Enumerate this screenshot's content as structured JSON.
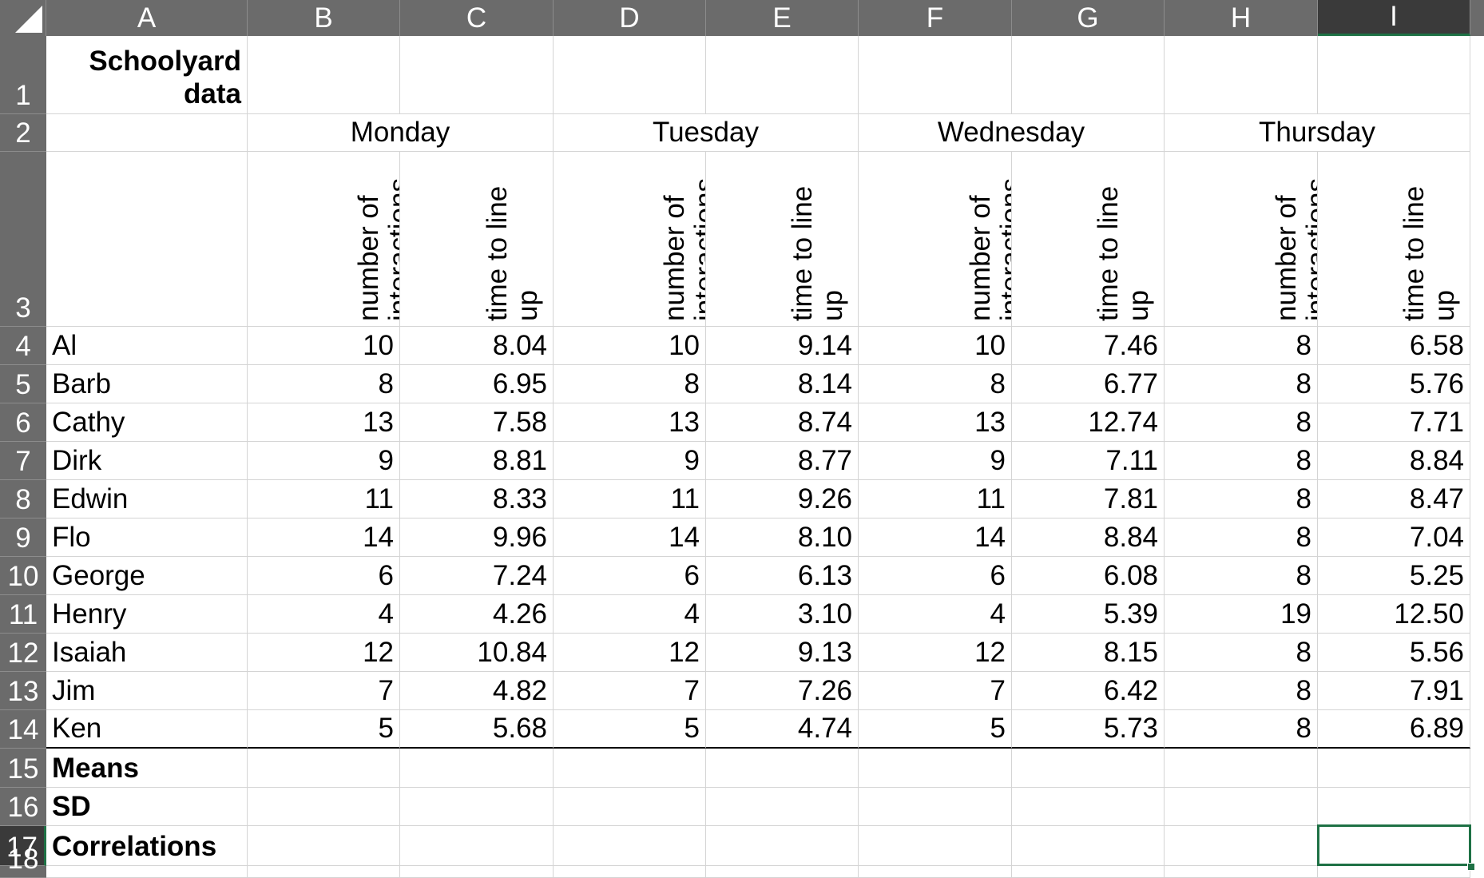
{
  "columns": [
    "A",
    "B",
    "C",
    "D",
    "E",
    "F",
    "G",
    "H",
    "I"
  ],
  "selected_column": "I",
  "selected_row": "17",
  "row_numbers": [
    "1",
    "2",
    "3",
    "4",
    "5",
    "6",
    "7",
    "8",
    "9",
    "10",
    "11",
    "12",
    "13",
    "14",
    "15",
    "16",
    "17",
    "18"
  ],
  "title": {
    "line1": "Schoolyard",
    "line2": "data"
  },
  "days": [
    "Monday",
    "Tuesday",
    "Wednesday",
    "Thursday"
  ],
  "subheaders": {
    "interactions": "number of interactions",
    "lineup": "time to line up"
  },
  "rows": [
    {
      "name": "Al",
      "values": [
        "10",
        "8.04",
        "10",
        "9.14",
        "10",
        "7.46",
        "8",
        "6.58"
      ]
    },
    {
      "name": "Barb",
      "values": [
        "8",
        "6.95",
        "8",
        "8.14",
        "8",
        "6.77",
        "8",
        "5.76"
      ]
    },
    {
      "name": "Cathy",
      "values": [
        "13",
        "7.58",
        "13",
        "8.74",
        "13",
        "12.74",
        "8",
        "7.71"
      ]
    },
    {
      "name": "Dirk",
      "values": [
        "9",
        "8.81",
        "9",
        "8.77",
        "9",
        "7.11",
        "8",
        "8.84"
      ]
    },
    {
      "name": "Edwin",
      "values": [
        "11",
        "8.33",
        "11",
        "9.26",
        "11",
        "7.81",
        "8",
        "8.47"
      ]
    },
    {
      "name": "Flo",
      "values": [
        "14",
        "9.96",
        "14",
        "8.10",
        "14",
        "8.84",
        "8",
        "7.04"
      ]
    },
    {
      "name": "George",
      "values": [
        "6",
        "7.24",
        "6",
        "6.13",
        "6",
        "6.08",
        "8",
        "5.25"
      ]
    },
    {
      "name": "Henry",
      "values": [
        "4",
        "4.26",
        "4",
        "3.10",
        "4",
        "5.39",
        "19",
        "12.50"
      ]
    },
    {
      "name": "Isaiah",
      "values": [
        "12",
        "10.84",
        "12",
        "9.13",
        "12",
        "8.15",
        "8",
        "5.56"
      ]
    },
    {
      "name": "Jim",
      "values": [
        "7",
        "4.82",
        "7",
        "7.26",
        "7",
        "6.42",
        "8",
        "7.91"
      ]
    },
    {
      "name": "Ken",
      "values": [
        "5",
        "5.68",
        "5",
        "4.74",
        "5",
        "5.73",
        "8",
        "6.89"
      ]
    }
  ],
  "summary_labels": [
    "Means",
    "SD",
    "Correlations"
  ],
  "colors": {
    "header_bg": "#6b6b6b",
    "header_selected_bg": "#3a3a3a",
    "selection": "#1e7145",
    "gridline": "#d4d4d4"
  }
}
